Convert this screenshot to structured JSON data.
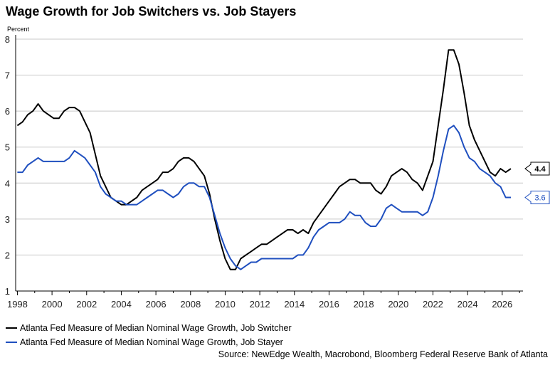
{
  "chart_data": {
    "type": "line",
    "title": "Wage Growth for Job Switchers vs. Job Stayers",
    "ylabel": "Percent",
    "xlabel": "",
    "ylim": [
      1,
      8
    ],
    "xlim": [
      1997.9,
      2027.2
    ],
    "yticks": [
      "1",
      "2",
      "3",
      "4",
      "5",
      "6",
      "7",
      "8"
    ],
    "xticks": [
      "1998",
      "2000",
      "2002",
      "2004",
      "2006",
      "2008",
      "2010",
      "2012",
      "2014",
      "2016",
      "2018",
      "2020",
      "2022",
      "2024",
      "2026"
    ],
    "grid": "horizontal",
    "legend_position": "bottom-left",
    "series": [
      {
        "name": "Atlanta Fed Measure of Median Nominal Wage Growth, Job Switcher",
        "color": "#000000",
        "end_label": "4.4",
        "points": [
          [
            1998.0,
            5.6
          ],
          [
            1998.3,
            5.7
          ],
          [
            1998.6,
            5.9
          ],
          [
            1998.9,
            6.0
          ],
          [
            1999.2,
            6.2
          ],
          [
            1999.5,
            6.0
          ],
          [
            1999.8,
            5.9
          ],
          [
            2000.1,
            5.8
          ],
          [
            2000.4,
            5.8
          ],
          [
            2000.7,
            6.0
          ],
          [
            2001.0,
            6.1
          ],
          [
            2001.3,
            6.1
          ],
          [
            2001.6,
            6.0
          ],
          [
            2001.9,
            5.7
          ],
          [
            2002.2,
            5.4
          ],
          [
            2002.5,
            4.8
          ],
          [
            2002.8,
            4.2
          ],
          [
            2003.1,
            3.9
          ],
          [
            2003.4,
            3.6
          ],
          [
            2003.7,
            3.5
          ],
          [
            2004.0,
            3.4
          ],
          [
            2004.3,
            3.4
          ],
          [
            2004.6,
            3.5
          ],
          [
            2004.9,
            3.6
          ],
          [
            2005.2,
            3.8
          ],
          [
            2005.5,
            3.9
          ],
          [
            2005.8,
            4.0
          ],
          [
            2006.1,
            4.1
          ],
          [
            2006.4,
            4.3
          ],
          [
            2006.7,
            4.3
          ],
          [
            2007.0,
            4.4
          ],
          [
            2007.3,
            4.6
          ],
          [
            2007.6,
            4.7
          ],
          [
            2007.9,
            4.7
          ],
          [
            2008.2,
            4.6
          ],
          [
            2008.5,
            4.4
          ],
          [
            2008.8,
            4.2
          ],
          [
            2009.1,
            3.7
          ],
          [
            2009.4,
            3.0
          ],
          [
            2009.7,
            2.4
          ],
          [
            2010.0,
            1.9
          ],
          [
            2010.3,
            1.6
          ],
          [
            2010.6,
            1.6
          ],
          [
            2010.9,
            1.9
          ],
          [
            2011.2,
            2.0
          ],
          [
            2011.5,
            2.1
          ],
          [
            2011.8,
            2.2
          ],
          [
            2012.1,
            2.3
          ],
          [
            2012.4,
            2.3
          ],
          [
            2012.7,
            2.4
          ],
          [
            2013.0,
            2.5
          ],
          [
            2013.3,
            2.6
          ],
          [
            2013.6,
            2.7
          ],
          [
            2013.9,
            2.7
          ],
          [
            2014.2,
            2.6
          ],
          [
            2014.5,
            2.7
          ],
          [
            2014.8,
            2.6
          ],
          [
            2015.1,
            2.9
          ],
          [
            2015.4,
            3.1
          ],
          [
            2015.7,
            3.3
          ],
          [
            2016.0,
            3.5
          ],
          [
            2016.3,
            3.7
          ],
          [
            2016.6,
            3.9
          ],
          [
            2016.9,
            4.0
          ],
          [
            2017.2,
            4.1
          ],
          [
            2017.5,
            4.1
          ],
          [
            2017.8,
            4.0
          ],
          [
            2018.1,
            4.0
          ],
          [
            2018.4,
            4.0
          ],
          [
            2018.7,
            3.8
          ],
          [
            2019.0,
            3.7
          ],
          [
            2019.3,
            3.9
          ],
          [
            2019.6,
            4.2
          ],
          [
            2019.9,
            4.3
          ],
          [
            2020.2,
            4.4
          ],
          [
            2020.5,
            4.3
          ],
          [
            2020.8,
            4.1
          ],
          [
            2021.1,
            4.0
          ],
          [
            2021.4,
            3.8
          ],
          [
            2021.7,
            4.2
          ],
          [
            2022.0,
            4.6
          ],
          [
            2022.3,
            5.6
          ],
          [
            2022.6,
            6.6
          ],
          [
            2022.9,
            7.7
          ],
          [
            2023.2,
            7.7
          ],
          [
            2023.5,
            7.3
          ],
          [
            2023.8,
            6.5
          ],
          [
            2024.1,
            5.6
          ],
          [
            2024.4,
            5.2
          ],
          [
            2024.7,
            4.9
          ],
          [
            2025.0,
            4.6
          ],
          [
            2025.3,
            4.3
          ],
          [
            2025.6,
            4.2
          ],
          [
            2025.9,
            4.4
          ],
          [
            2026.2,
            4.3
          ],
          [
            2026.5,
            4.4
          ]
        ]
      },
      {
        "name": "Atlanta Fed Measure of Median Nominal Wage Growth, Job Stayer",
        "color": "#1f4fbf",
        "end_label": "3.6",
        "points": [
          [
            1998.0,
            4.3
          ],
          [
            1998.3,
            4.3
          ],
          [
            1998.6,
            4.5
          ],
          [
            1998.9,
            4.6
          ],
          [
            1999.2,
            4.7
          ],
          [
            1999.5,
            4.6
          ],
          [
            1999.8,
            4.6
          ],
          [
            2000.1,
            4.6
          ],
          [
            2000.4,
            4.6
          ],
          [
            2000.7,
            4.6
          ],
          [
            2001.0,
            4.7
          ],
          [
            2001.3,
            4.9
          ],
          [
            2001.6,
            4.8
          ],
          [
            2001.9,
            4.7
          ],
          [
            2002.2,
            4.5
          ],
          [
            2002.5,
            4.3
          ],
          [
            2002.8,
            3.9
          ],
          [
            2003.1,
            3.7
          ],
          [
            2003.4,
            3.6
          ],
          [
            2003.7,
            3.5
          ],
          [
            2004.0,
            3.5
          ],
          [
            2004.3,
            3.4
          ],
          [
            2004.6,
            3.4
          ],
          [
            2004.9,
            3.4
          ],
          [
            2005.2,
            3.5
          ],
          [
            2005.5,
            3.6
          ],
          [
            2005.8,
            3.7
          ],
          [
            2006.1,
            3.8
          ],
          [
            2006.4,
            3.8
          ],
          [
            2006.7,
            3.7
          ],
          [
            2007.0,
            3.6
          ],
          [
            2007.3,
            3.7
          ],
          [
            2007.6,
            3.9
          ],
          [
            2007.9,
            4.0
          ],
          [
            2008.2,
            4.0
          ],
          [
            2008.5,
            3.9
          ],
          [
            2008.8,
            3.9
          ],
          [
            2009.1,
            3.6
          ],
          [
            2009.4,
            3.1
          ],
          [
            2009.7,
            2.6
          ],
          [
            2010.0,
            2.2
          ],
          [
            2010.3,
            1.9
          ],
          [
            2010.6,
            1.7
          ],
          [
            2010.9,
            1.6
          ],
          [
            2011.2,
            1.7
          ],
          [
            2011.5,
            1.8
          ],
          [
            2011.8,
            1.8
          ],
          [
            2012.1,
            1.9
          ],
          [
            2012.4,
            1.9
          ],
          [
            2012.7,
            1.9
          ],
          [
            2013.0,
            1.9
          ],
          [
            2013.3,
            1.9
          ],
          [
            2013.6,
            1.9
          ],
          [
            2013.9,
            1.9
          ],
          [
            2014.2,
            2.0
          ],
          [
            2014.5,
            2.0
          ],
          [
            2014.8,
            2.2
          ],
          [
            2015.1,
            2.5
          ],
          [
            2015.4,
            2.7
          ],
          [
            2015.7,
            2.8
          ],
          [
            2016.0,
            2.9
          ],
          [
            2016.3,
            2.9
          ],
          [
            2016.6,
            2.9
          ],
          [
            2016.9,
            3.0
          ],
          [
            2017.2,
            3.2
          ],
          [
            2017.5,
            3.1
          ],
          [
            2017.8,
            3.1
          ],
          [
            2018.1,
            2.9
          ],
          [
            2018.4,
            2.8
          ],
          [
            2018.7,
            2.8
          ],
          [
            2019.0,
            3.0
          ],
          [
            2019.3,
            3.3
          ],
          [
            2019.6,
            3.4
          ],
          [
            2019.9,
            3.3
          ],
          [
            2020.2,
            3.2
          ],
          [
            2020.5,
            3.2
          ],
          [
            2020.8,
            3.2
          ],
          [
            2021.1,
            3.2
          ],
          [
            2021.4,
            3.1
          ],
          [
            2021.7,
            3.2
          ],
          [
            2022.0,
            3.6
          ],
          [
            2022.3,
            4.2
          ],
          [
            2022.6,
            4.9
          ],
          [
            2022.9,
            5.5
          ],
          [
            2023.2,
            5.6
          ],
          [
            2023.5,
            5.4
          ],
          [
            2023.8,
            5.0
          ],
          [
            2024.1,
            4.7
          ],
          [
            2024.4,
            4.6
          ],
          [
            2024.7,
            4.4
          ],
          [
            2025.0,
            4.3
          ],
          [
            2025.3,
            4.2
          ],
          [
            2025.6,
            4.0
          ],
          [
            2025.9,
            3.9
          ],
          [
            2026.2,
            3.6
          ],
          [
            2026.5,
            3.6
          ]
        ]
      }
    ]
  },
  "source_text": "Source: NewEdge Wealth, Macrobond, Bloomberg Federal Reserve Bank of Atlanta"
}
